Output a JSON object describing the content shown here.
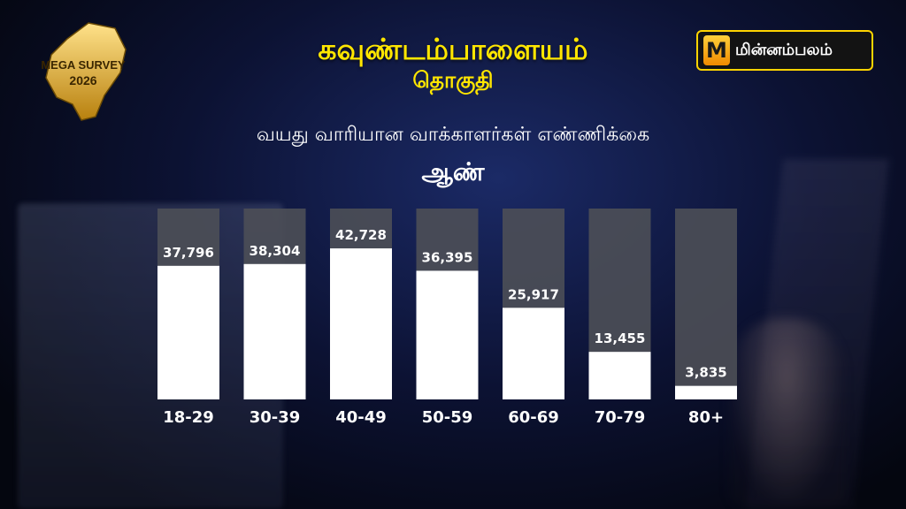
{
  "header": {
    "title": "கவுண்டம்பாளையம்",
    "subtitle": "தொகுதி",
    "chart_caption": "வயது வாரியான வாக்காளர்கள் எண்ணிக்கை",
    "gender": "ஆண்"
  },
  "badge": {
    "line1": "MEGA SURVEY",
    "line2": "2026"
  },
  "logo": {
    "text": "மின்னம்பலம்",
    "mark": "M"
  },
  "colors": {
    "title": "#ffe600",
    "bar_fill": "#ffffff",
    "bar_track": "#4d4f57",
    "logo_border": "#ffd400"
  },
  "chart_data": {
    "type": "bar",
    "title": "வயது வாரியான வாக்காளர்கள் எண்ணிக்கை",
    "categories": [
      "18-29",
      "30-39",
      "40-49",
      "50-59",
      "60-69",
      "70-79",
      "80+"
    ],
    "values": [
      37796,
      38304,
      42728,
      36395,
      25917,
      13455,
      3835
    ],
    "labels": [
      "37,796",
      "38,304",
      "42,728",
      "36,395",
      "25,917",
      "13,455",
      "3,835"
    ],
    "ylim": [
      0,
      54000
    ],
    "grid": false,
    "legend": "none"
  }
}
